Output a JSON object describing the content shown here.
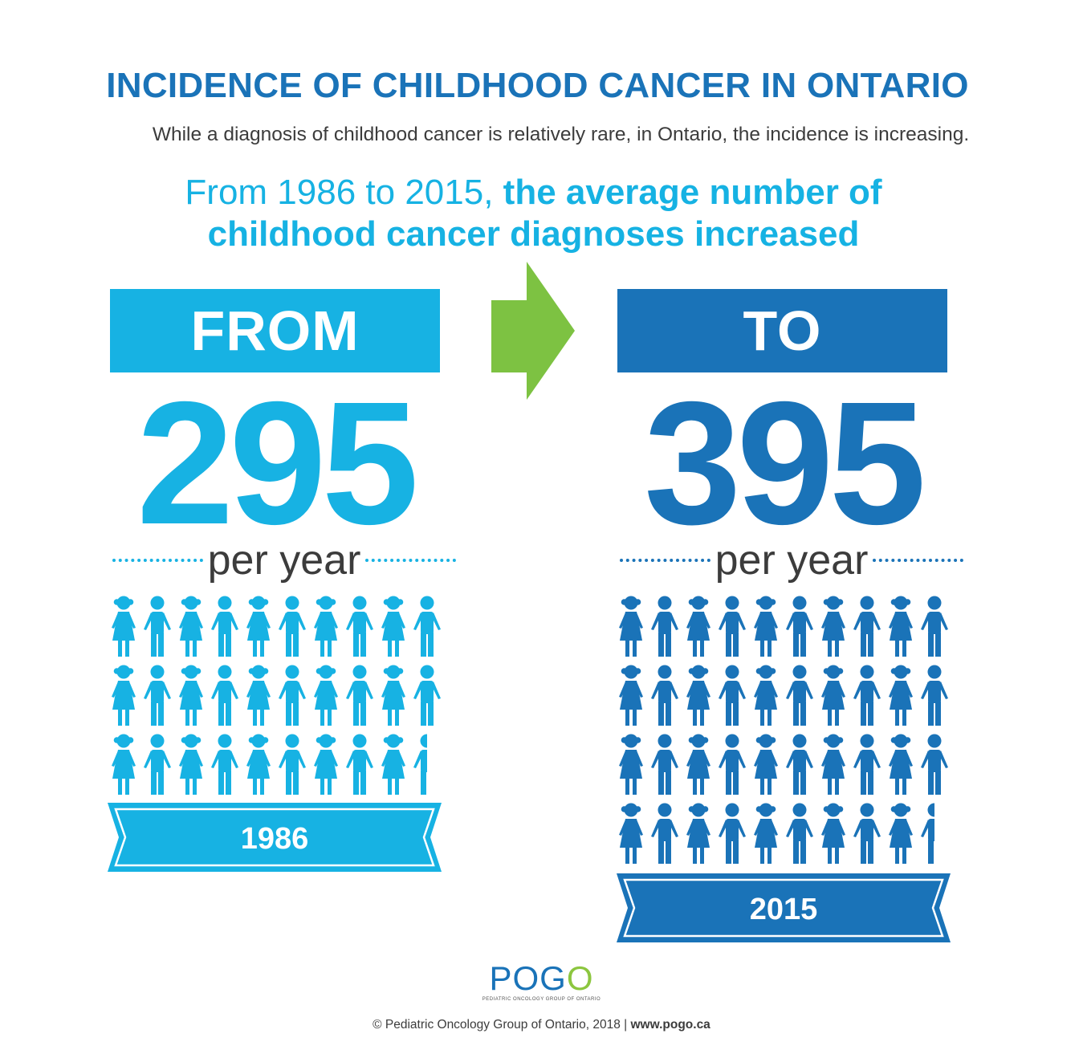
{
  "title": "INCIDENCE OF CHILDHOOD CANCER IN ONTARIO",
  "subtitle": "While a diagnosis of childhood cancer is relatively rare, in Ontario, the incidence is increasing.",
  "headline": {
    "part1": "From 1986 to 2015, ",
    "part2": "the average number of",
    "part3": "childhood cancer diagnoses increased"
  },
  "from": {
    "label": "FROM",
    "number": "295",
    "unit": "per year",
    "year": "1986",
    "value": 295,
    "rows": 3,
    "color": "#17b2e3"
  },
  "to": {
    "label": "TO",
    "number": "395",
    "unit": "per year",
    "year": "2015",
    "value": 395,
    "rows": 4,
    "color": "#1a73b8"
  },
  "arrow_color": "#7dc242",
  "icons": [
    "girl-icon",
    "boy-icon"
  ],
  "logo": {
    "text": "POGO",
    "tagline": "PEDIATRIC ONCOLOGY GROUP OF ONTARIO"
  },
  "footer": {
    "copyright": "© Pediatric Oncology Group of Ontario, 2018 | ",
    "url": "www.pogo.ca"
  }
}
